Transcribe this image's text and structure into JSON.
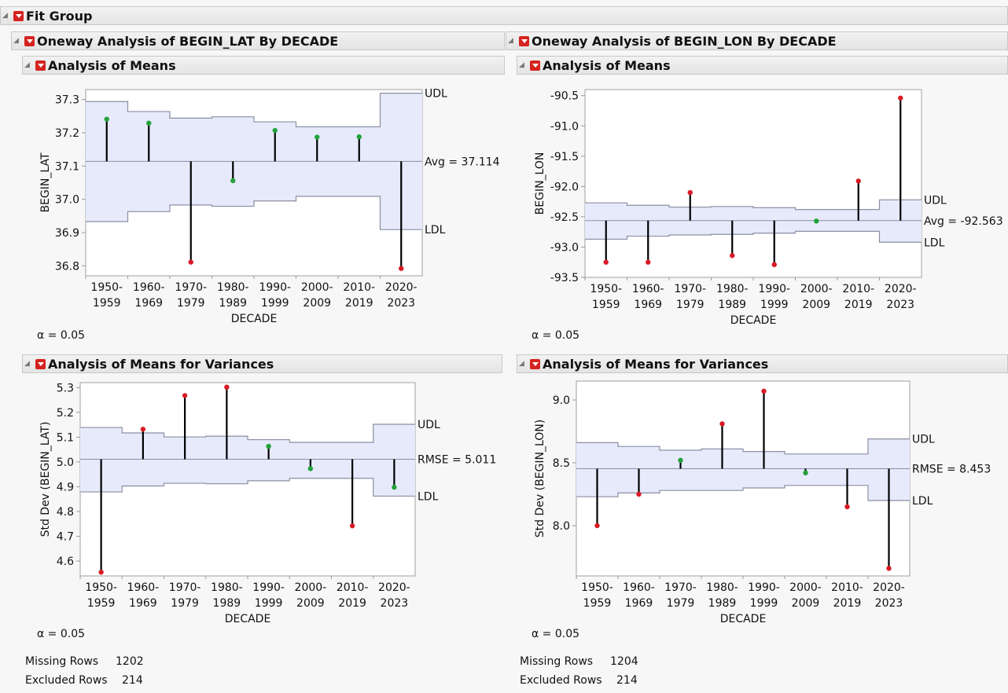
{
  "fit_group": {
    "title": "Fit Group"
  },
  "left": {
    "title": "Oneway Analysis of BEGIN_LAT By DECADE",
    "means_title": "Analysis of Means",
    "variances_title": "Analysis of Means for Variances",
    "alpha_means": "α = 0.05",
    "alpha_var": "α = 0.05",
    "missing_label": "Missing Rows",
    "missing_value": "1202",
    "excluded_label": "Excluded Rows",
    "excluded_value": "214"
  },
  "right": {
    "title": "Oneway Analysis of BEGIN_LON By DECADE",
    "means_title": "Analysis of Means",
    "variances_title": "Analysis of Means for Variances",
    "alpha_means": "α = 0.05",
    "alpha_var": "α = 0.05",
    "missing_label": "Missing Rows",
    "missing_value": "1204",
    "excluded_label": "Excluded Rows",
    "excluded_value": "214"
  },
  "colors": {
    "band": "#e6eafb",
    "limit": "#8a8fa3",
    "in": "#22a33a",
    "out": "#d81b25"
  },
  "chart_data": [
    {
      "id": "lat_means",
      "type": "scatter",
      "ylabel": "BEGIN_LAT",
      "xlabel": "DECADE",
      "ylim": [
        36.77,
        37.33
      ],
      "yticks": [
        36.8,
        36.9,
        37.0,
        37.1,
        37.2,
        37.3
      ],
      "ytick_labels": [
        "36.8",
        "36.9",
        "37.0",
        "37.1",
        "37.2",
        "37.3"
      ],
      "categories": [
        [
          "1950-",
          "1959"
        ],
        [
          "1960-",
          "1969"
        ],
        [
          "1970-",
          "1979"
        ],
        [
          "1980-",
          "1989"
        ],
        [
          "1990-",
          "1999"
        ],
        [
          "2000-",
          "2009"
        ],
        [
          "2010-",
          "2019"
        ],
        [
          "2020-",
          "2023"
        ]
      ],
      "center": 37.114,
      "center_label": "Avg = 37.114",
      "values": [
        37.241,
        37.229,
        36.811,
        37.056,
        37.207,
        37.187,
        37.188,
        36.792
      ],
      "udl": [
        37.294,
        37.264,
        37.244,
        37.248,
        37.233,
        37.218,
        37.218,
        37.319
      ],
      "ldl": [
        36.933,
        36.963,
        36.983,
        36.979,
        36.995,
        37.009,
        37.009,
        36.909
      ],
      "udl_label": "UDL",
      "ldl_label": "LDL"
    },
    {
      "id": "lon_means",
      "type": "scatter",
      "ylabel": "BEGIN_LON",
      "xlabel": "DECADE",
      "ylim": [
        -93.5,
        -90.4
      ],
      "yticks": [
        -93.5,
        -93.0,
        -92.5,
        -92.0,
        -91.5,
        -91.0,
        -90.5
      ],
      "ytick_labels": [
        "-93.5",
        "-93.0",
        "-92.5",
        "-92.0",
        "-91.5",
        "-91.0",
        "-90.5"
      ],
      "categories": [
        [
          "1950-",
          "1959"
        ],
        [
          "1960-",
          "1969"
        ],
        [
          "1970-",
          "1979"
        ],
        [
          "1980-",
          "1989"
        ],
        [
          "1990-",
          "1999"
        ],
        [
          "2000-",
          "2009"
        ],
        [
          "2010-",
          "2019"
        ],
        [
          "2020-",
          "2023"
        ]
      ],
      "center": -92.563,
      "center_label": "Avg = -92.563",
      "values": [
        -93.25,
        -93.25,
        -92.1,
        -93.14,
        -93.29,
        -92.57,
        -91.91,
        -90.54
      ],
      "udl": [
        -92.27,
        -92.31,
        -92.34,
        -92.33,
        -92.35,
        -92.38,
        -92.38,
        -92.22
      ],
      "ldl": [
        -92.87,
        -92.82,
        -92.8,
        -92.79,
        -92.77,
        -92.74,
        -92.74,
        -92.92
      ],
      "udl_label": "UDL",
      "ldl_label": "LDL"
    },
    {
      "id": "lat_var",
      "type": "scatter",
      "ylabel": "Std Dev (BEGIN_LAT)",
      "xlabel": "DECADE",
      "ylim": [
        4.54,
        5.32
      ],
      "yticks": [
        4.6,
        4.7,
        4.8,
        4.9,
        5.0,
        5.1,
        5.2,
        5.3
      ],
      "ytick_labels": [
        "4.6",
        "4.7",
        "4.8",
        "4.9",
        "5.0",
        "5.1",
        "5.2",
        "5.3"
      ],
      "categories": [
        [
          "1950-",
          "1959"
        ],
        [
          "1960-",
          "1969"
        ],
        [
          "1970-",
          "1979"
        ],
        [
          "1980-",
          "1989"
        ],
        [
          "1990-",
          "1999"
        ],
        [
          "2000-",
          "2009"
        ],
        [
          "2010-",
          "2019"
        ],
        [
          "2020-",
          "2023"
        ]
      ],
      "center": 5.011,
      "center_label": "RMSE = 5.011",
      "values": [
        4.555,
        5.132,
        5.268,
        5.302,
        5.063,
        4.973,
        4.742,
        4.898
      ],
      "udl": [
        5.139,
        5.117,
        5.101,
        5.104,
        5.09,
        5.079,
        5.079,
        5.152
      ],
      "ldl": [
        4.879,
        4.903,
        4.914,
        4.912,
        4.924,
        4.934,
        4.934,
        4.862
      ],
      "udl_label": "UDL",
      "ldl_label": "LDL"
    },
    {
      "id": "lon_var",
      "type": "scatter",
      "ylabel": "Std Dev (BEGIN_LON)",
      "xlabel": "DECADE",
      "ylim": [
        7.6,
        9.15
      ],
      "yticks": [
        8.0,
        8.5,
        9.0
      ],
      "ytick_labels": [
        "8.0",
        "8.5",
        "9.0"
      ],
      "categories": [
        [
          "1950-",
          "1959"
        ],
        [
          "1960-",
          "1969"
        ],
        [
          "1970-",
          "1979"
        ],
        [
          "1980-",
          "1989"
        ],
        [
          "1990-",
          "1999"
        ],
        [
          "2000-",
          "2009"
        ],
        [
          "2010-",
          "2019"
        ],
        [
          "2020-",
          "2023"
        ]
      ],
      "center": 8.453,
      "center_label": "RMSE = 8.453",
      "values": [
        8.0,
        8.25,
        8.52,
        8.81,
        9.07,
        8.42,
        8.15,
        7.66
      ],
      "udl": [
        8.66,
        8.63,
        8.6,
        8.61,
        8.59,
        8.57,
        8.57,
        8.69
      ],
      "ldl": [
        8.23,
        8.26,
        8.28,
        8.28,
        8.3,
        8.32,
        8.32,
        8.2
      ],
      "udl_label": "UDL",
      "ldl_label": "LDL"
    }
  ]
}
